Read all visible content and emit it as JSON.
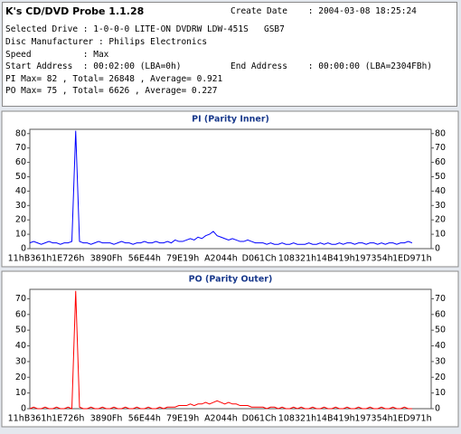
{
  "header": {
    "title": "K's CD/DVD Probe 1.1.28",
    "create_date": "Create Date    : 2004-03-08 18:25:24",
    "lines": [
      "Selected Drive : 1-0-0-0 LITE-ON DVDRW LDW-451S   GSB7",
      "Disc Manufacturer : Philips Electronics",
      "Speed          : Max",
      "Start Address  : 00:02:00 (LBA=0h)",
      "PI Max= 82 , Total= 26848 , Average= 0.921",
      "PO Max= 75 , Total= 6626 , Average= 0.227"
    ],
    "end_address": "End Address    : 00:00:00 (LBA=2304FBh)"
  },
  "chart_data": [
    {
      "type": "line",
      "title": "PI (Parity Inner)",
      "categories": [
        "11hB361h",
        null,
        null,
        null,
        null,
        null,
        null,
        null,
        null,
        null,
        "1E726h",
        null,
        null,
        null,
        null,
        null,
        null,
        null,
        null,
        null,
        "3890Fh",
        null,
        null,
        null,
        null,
        null,
        null,
        null,
        null,
        null,
        "56E44h",
        null,
        null,
        null,
        null,
        null,
        null,
        null,
        null,
        null,
        "79E19h",
        null,
        null,
        null,
        null,
        null,
        null,
        null,
        null,
        null,
        "A2044h",
        null,
        null,
        null,
        null,
        null,
        null,
        null,
        null,
        null,
        "D061Ch",
        null,
        null,
        null,
        null,
        null,
        null,
        null,
        null,
        null,
        "108321h",
        null,
        null,
        null,
        null,
        null,
        null,
        null,
        null,
        null,
        "14B419h",
        null,
        null,
        null,
        null,
        null,
        null,
        null,
        null,
        null,
        "197354h",
        null,
        null,
        null,
        null,
        null,
        null,
        null,
        null,
        null,
        "1ED971h"
      ],
      "series": [
        {
          "color": "#0000ff",
          "values": [
            4,
            5,
            4,
            3,
            4,
            5,
            4,
            4,
            3,
            4,
            4,
            5,
            82,
            5,
            4,
            4,
            3,
            4,
            5,
            4,
            4,
            4,
            3,
            4,
            5,
            4,
            4,
            3,
            4,
            4,
            5,
            4,
            4,
            5,
            4,
            4,
            5,
            4,
            6,
            5,
            5,
            6,
            7,
            6,
            8,
            7,
            9,
            10,
            12,
            9,
            8,
            7,
            6,
            7,
            6,
            5,
            5,
            6,
            5,
            4,
            4,
            4,
            3,
            4,
            3,
            3,
            4,
            3,
            3,
            4,
            3,
            3,
            3,
            4,
            3,
            3,
            4,
            3,
            4,
            3,
            3,
            4,
            3,
            4,
            4,
            3,
            4,
            4,
            3,
            4,
            4,
            3,
            4,
            3,
            4,
            4,
            3,
            4,
            4,
            5,
            4
          ]
        }
      ],
      "ylim": [
        0,
        83
      ],
      "yticks": [
        0,
        10,
        20,
        30,
        40,
        50,
        60,
        70,
        80
      ]
    },
    {
      "type": "line",
      "title": "PO (Parity Outer)",
      "categories": [
        "11hB361h",
        null,
        null,
        null,
        null,
        null,
        null,
        null,
        null,
        null,
        "1E726h",
        null,
        null,
        null,
        null,
        null,
        null,
        null,
        null,
        null,
        "3890Fh",
        null,
        null,
        null,
        null,
        null,
        null,
        null,
        null,
        null,
        "56E44h",
        null,
        null,
        null,
        null,
        null,
        null,
        null,
        null,
        null,
        "79E19h",
        null,
        null,
        null,
        null,
        null,
        null,
        null,
        null,
        null,
        "A2044h",
        null,
        null,
        null,
        null,
        null,
        null,
        null,
        null,
        null,
        "D061Ch",
        null,
        null,
        null,
        null,
        null,
        null,
        null,
        null,
        null,
        "108321h",
        null,
        null,
        null,
        null,
        null,
        null,
        null,
        null,
        null,
        "14B419h",
        null,
        null,
        null,
        null,
        null,
        null,
        null,
        null,
        null,
        "197354h",
        null,
        null,
        null,
        null,
        null,
        null,
        null,
        null,
        null,
        "1ED971h"
      ],
      "series": [
        {
          "color": "#ff0000",
          "values": [
            0,
            1,
            0,
            0,
            1,
            0,
            0,
            1,
            0,
            0,
            1,
            0,
            75,
            1,
            0,
            0,
            1,
            0,
            0,
            1,
            0,
            0,
            1,
            0,
            0,
            1,
            0,
            0,
            1,
            0,
            0,
            1,
            0,
            0,
            1,
            0,
            1,
            1,
            1,
            2,
            2,
            2,
            3,
            2,
            3,
            3,
            4,
            3,
            4,
            5,
            4,
            3,
            4,
            3,
            3,
            2,
            2,
            2,
            1,
            1,
            1,
            1,
            0,
            1,
            1,
            0,
            1,
            0,
            0,
            1,
            0,
            1,
            0,
            0,
            1,
            0,
            0,
            1,
            0,
            0,
            1,
            0,
            0,
            1,
            0,
            0,
            1,
            0,
            0,
            1,
            0,
            0,
            1,
            0,
            0,
            1,
            0,
            0,
            1,
            0,
            0
          ]
        }
      ],
      "ylim": [
        0,
        76
      ],
      "yticks": [
        0,
        10,
        20,
        30,
        40,
        50,
        60,
        70
      ]
    }
  ]
}
